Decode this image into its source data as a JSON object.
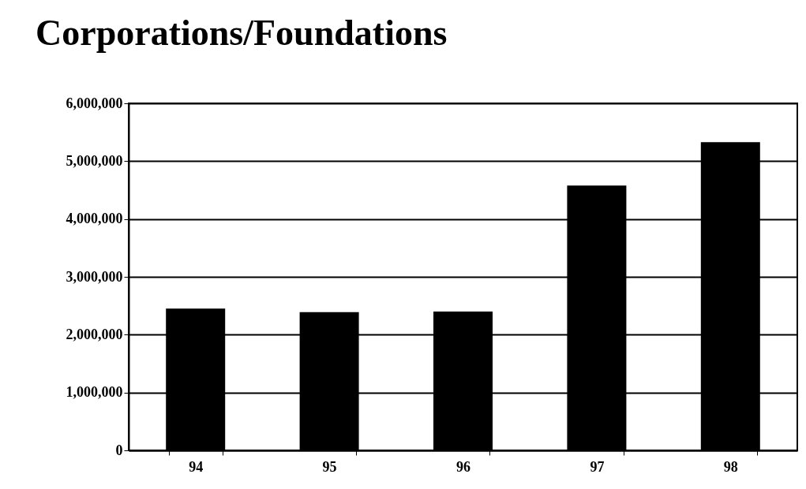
{
  "chart_data": {
    "type": "bar",
    "title": "Corporations/Foundations",
    "categories": [
      "94",
      "95",
      "96",
      "97",
      "98"
    ],
    "values": [
      2450000,
      2390000,
      2400000,
      4580000,
      5330000
    ],
    "color": "#000000",
    "ylim": [
      0,
      6000000
    ],
    "yticks": [
      0,
      {
        "value": 1000000,
        "label": "1,000,000"
      },
      {
        "value": 2000000,
        "label": "2,000,000"
      },
      {
        "value": 3000000,
        "label": "3,000,000"
      },
      {
        "value": 4000000,
        "label": "4,000,000"
      },
      {
        "value": 5000000,
        "label": "5,000,000"
      },
      {
        "value": 6000000,
        "label": "6,000,000"
      }
    ],
    "grid": "y"
  }
}
